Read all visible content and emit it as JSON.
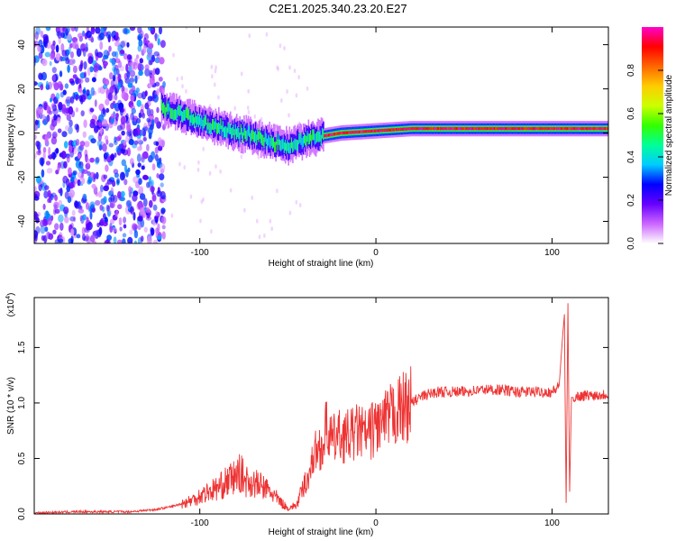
{
  "title": "C2E1.2025.340.23.20.E27",
  "chart_data": [
    {
      "type": "heatmap",
      "title": "",
      "xlabel": "Height of straight line (km)",
      "ylabel": "Frequency (Hz)",
      "xlim": [
        -194,
        132
      ],
      "ylim": [
        -50,
        48
      ],
      "xticks": [
        -100,
        0,
        100
      ],
      "yticks": [
        -40,
        -20,
        0,
        20,
        40
      ],
      "colorbar": {
        "label": "Normalized spectral amplitude",
        "range": [
          0,
          1
        ],
        "ticks": [
          0.0,
          0.2,
          0.4,
          0.6,
          0.8
        ],
        "tick_labels": [
          "0.0",
          "0.2",
          "0.4",
          "0.6",
          "0.8"
        ],
        "colormap": [
          "#ffffff",
          "#cc66ff",
          "#6600ff",
          "#0000ff",
          "#00ccff",
          "#00ff99",
          "#33ff00",
          "#ccff00",
          "#ffcc00",
          "#ff6600",
          "#ff0000",
          "#ff00cc"
        ]
      },
      "features": [
        {
          "name": "broadband noise",
          "x_range": [
            -194,
            -120
          ],
          "y_range": [
            -50,
            48
          ],
          "amplitude": 0.2
        },
        {
          "name": "signal band",
          "points": [
            [
              -122,
              12
            ],
            [
              -110,
              8
            ],
            [
              -100,
              5
            ],
            [
              -90,
              3
            ],
            [
              -80,
              0
            ],
            [
              -70,
              -1
            ],
            [
              -60,
              -4
            ],
            [
              -50,
              -6
            ],
            [
              -45,
              -4
            ],
            [
              -35,
              -2
            ],
            [
              -20,
              0
            ],
            [
              0,
              1
            ],
            [
              20,
              2
            ],
            [
              50,
              2
            ],
            [
              80,
              2
            ],
            [
              100,
              2
            ],
            [
              110,
              2
            ],
            [
              132,
              2
            ]
          ],
          "amplitude": 0.9
        }
      ]
    },
    {
      "type": "line",
      "title": "",
      "xlabel": "Height of straight line (km)",
      "ylabel": "SNR (10 * v/v)",
      "exponent_label": "(x10",
      "exponent_power": "4",
      "xlim": [
        -194,
        132
      ],
      "ylim": [
        0,
        1.95
      ],
      "xticks": [
        -100,
        0,
        100
      ],
      "yticks": [
        0.0,
        0.5,
        1.0,
        1.5
      ],
      "ytick_labels": [
        "0.0",
        "0.5",
        "1.0",
        "1.5"
      ],
      "color": "#ee3333",
      "series": [
        {
          "name": "SNR",
          "x": [
            -194,
            -170,
            -140,
            -125,
            -115,
            -105,
            -98,
            -92,
            -88,
            -84,
            -80,
            -77,
            -74,
            -70,
            -65,
            -60,
            -55,
            -50,
            -45,
            -42,
            -38,
            -35,
            -32,
            -30,
            -28,
            -25,
            -22,
            -20,
            -15,
            -10,
            -5,
            0,
            5,
            10,
            15,
            20,
            25,
            30,
            35,
            40,
            50,
            60,
            70,
            80,
            90,
            100,
            104,
            106,
            107,
            108,
            109,
            110,
            111,
            112,
            115,
            120,
            125,
            132
          ],
          "y": [
            0.01,
            0.02,
            0.02,
            0.04,
            0.07,
            0.12,
            0.18,
            0.22,
            0.25,
            0.3,
            0.33,
            0.37,
            0.3,
            0.28,
            0.25,
            0.2,
            0.12,
            0.05,
            0.08,
            0.2,
            0.35,
            0.55,
            0.6,
            0.6,
            0.8,
            0.65,
            0.7,
            0.7,
            0.7,
            0.75,
            0.7,
            0.8,
            0.82,
            0.9,
            0.95,
            1.0,
            1.05,
            1.08,
            1.1,
            1.1,
            1.1,
            1.12,
            1.12,
            1.1,
            1.1,
            1.1,
            1.15,
            1.6,
            1.8,
            0.1,
            1.9,
            0.2,
            1.05,
            1.05,
            1.06,
            1.07,
            1.07,
            1.08
          ]
        }
      ]
    }
  ]
}
